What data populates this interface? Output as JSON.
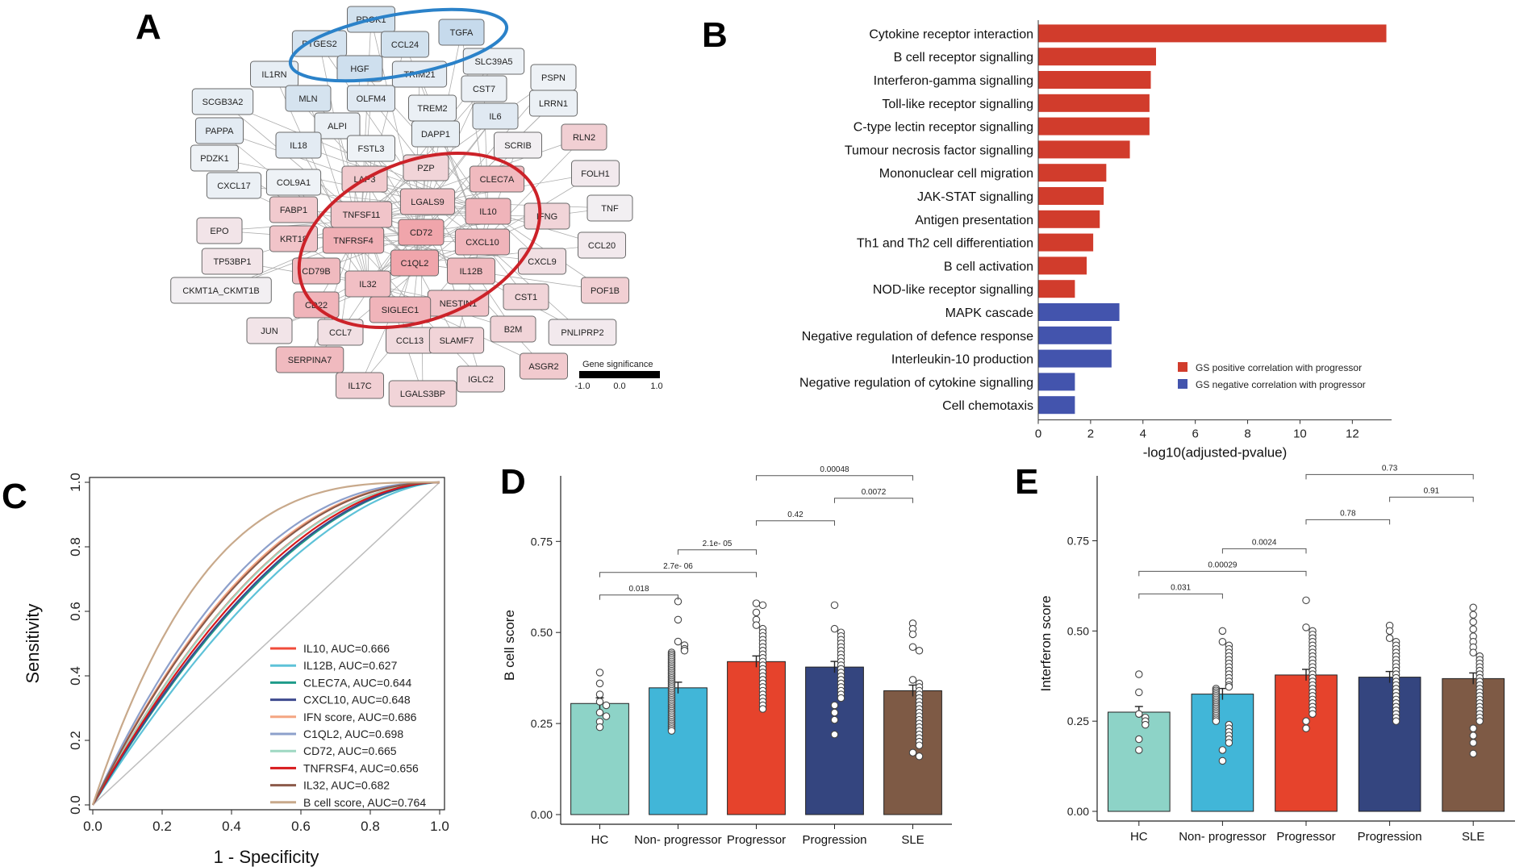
{
  "panel_labels": {
    "a": "A",
    "b": "B",
    "c": "C",
    "d": "D",
    "e": "E"
  },
  "network": {
    "legend_title": "Gene significance",
    "legend_ticks": [
      "-1.0",
      "0.0",
      "1.0"
    ],
    "colors": {
      "negative": "#a9c9e4",
      "neutral": "#f2f4f7",
      "positive": "#ef8a91",
      "outline_blue": "#2b82c9",
      "outline_red": "#cc2229"
    },
    "nodes": [
      {
        "label": "PROK1",
        "gs": -0.45
      },
      {
        "label": "TGFA",
        "gs": -0.6
      },
      {
        "label": "PTGES2",
        "gs": -0.4
      },
      {
        "label": "CCL24",
        "gs": -0.45
      },
      {
        "label": "HGF",
        "gs": -0.5
      },
      {
        "label": "IL1RN",
        "gs": -0.15
      },
      {
        "label": "TRIM21",
        "gs": -0.2
      },
      {
        "label": "SLC39A5",
        "gs": -0.1
      },
      {
        "label": "PSPN",
        "gs": -0.05
      },
      {
        "label": "SCGB3A2",
        "gs": -0.15
      },
      {
        "label": "MLN",
        "gs": -0.4
      },
      {
        "label": "OLFM4",
        "gs": -0.25
      },
      {
        "label": "CST7",
        "gs": -0.1
      },
      {
        "label": "LRRN1",
        "gs": -0.1
      },
      {
        "label": "TREM2",
        "gs": -0.1
      },
      {
        "label": "PAPPA",
        "gs": -0.2
      },
      {
        "label": "ALPI",
        "gs": -0.1
      },
      {
        "label": "DAPP1",
        "gs": -0.15
      },
      {
        "label": "IL6",
        "gs": -0.25
      },
      {
        "label": "RLN2",
        "gs": 0.35
      },
      {
        "label": "IL18",
        "gs": -0.2
      },
      {
        "label": "FSTL3",
        "gs": -0.05
      },
      {
        "label": "SCRIB",
        "gs": 0.05
      },
      {
        "label": "PDZK1",
        "gs": -0.05
      },
      {
        "label": "PZP",
        "gs": 0.3
      },
      {
        "label": "LAP3",
        "gs": 0.4
      },
      {
        "label": "CLEC7A",
        "gs": 0.55
      },
      {
        "label": "FOLH1",
        "gs": 0.1
      },
      {
        "label": "CXCL17",
        "gs": -0.1
      },
      {
        "label": "COL9A1",
        "gs": -0.05
      },
      {
        "label": "LGALS9",
        "gs": 0.5
      },
      {
        "label": "TNF",
        "gs": 0.05
      },
      {
        "label": "FABP1",
        "gs": 0.4
      },
      {
        "label": "TNFSF11",
        "gs": 0.45
      },
      {
        "label": "IL10",
        "gs": 0.6
      },
      {
        "label": "IFNG",
        "gs": 0.3
      },
      {
        "label": "EPO",
        "gs": 0.15
      },
      {
        "label": "KRT18",
        "gs": 0.45
      },
      {
        "label": "TNFRSF4",
        "gs": 0.65
      },
      {
        "label": "CD72",
        "gs": 0.75
      },
      {
        "label": "CXCL10",
        "gs": 0.6
      },
      {
        "label": "CCL20",
        "gs": 0.1
      },
      {
        "label": "TP53BP1",
        "gs": 0.15
      },
      {
        "label": "C1QL2",
        "gs": 0.75
      },
      {
        "label": "CXCL9",
        "gs": 0.2
      },
      {
        "label": "CD79B",
        "gs": 0.55
      },
      {
        "label": "IL12B",
        "gs": 0.55
      },
      {
        "label": "CKMT1A_CKMT1B",
        "gs": 0.05
      },
      {
        "label": "IL32",
        "gs": 0.5
      },
      {
        "label": "POF1B",
        "gs": 0.35
      },
      {
        "label": "NESTIN1",
        "gs": 0.45
      },
      {
        "label": "CST1",
        "gs": 0.3
      },
      {
        "label": "CD22",
        "gs": 0.6
      },
      {
        "label": "SIGLEC1",
        "gs": 0.6
      },
      {
        "label": "JUN",
        "gs": 0.15
      },
      {
        "label": "CCL7",
        "gs": 0.2
      },
      {
        "label": "CCL13",
        "gs": 0.25
      },
      {
        "label": "SLAMF7",
        "gs": 0.3
      },
      {
        "label": "B2M",
        "gs": 0.3
      },
      {
        "label": "PNLIPRP2",
        "gs": 0.1
      },
      {
        "label": "SERPINA7",
        "gs": 0.55
      },
      {
        "label": "ASGR2",
        "gs": 0.4
      },
      {
        "label": "IL17C",
        "gs": 0.35
      },
      {
        "label": "IGLC2",
        "gs": 0.25
      },
      {
        "label": "LGALS3BP",
        "gs": 0.3
      }
    ]
  },
  "chart_data": [
    {
      "panel": "B",
      "type": "bar",
      "orientation": "horizontal",
      "xlabel": "-log10(adjusted-pvalue)",
      "xlim": [
        0,
        13.5
      ],
      "x_ticks": [
        0,
        2,
        4,
        6,
        8,
        10,
        12
      ],
      "categories": [
        "Cytokine receptor interaction",
        "B cell receptor signalling",
        "Interferon-gamma signalling",
        "Toll-like receptor signalling",
        "C-type lectin receptor signalling",
        "Tumour necrosis factor signalling",
        "Mononuclear cell migration",
        "JAK-STAT signalling",
        "Antigen presentation",
        "Th1 and Th2 cell differentiation",
        "B cell activation",
        "NOD-like receptor signalling",
        "MAPK cascade",
        "Negative regulation of defence response",
        "Interleukin-10 production",
        "Negative regulation of cytokine signalling",
        "Cell chemotaxis"
      ],
      "values": [
        13.3,
        4.5,
        4.3,
        4.25,
        4.25,
        3.5,
        2.6,
        2.5,
        2.35,
        2.1,
        1.85,
        1.4,
        3.1,
        2.8,
        2.8,
        1.4,
        1.4
      ],
      "groups": [
        "pos",
        "pos",
        "pos",
        "pos",
        "pos",
        "pos",
        "pos",
        "pos",
        "pos",
        "pos",
        "pos",
        "pos",
        "neg",
        "neg",
        "neg",
        "neg",
        "neg"
      ],
      "legend": [
        {
          "key": "pos",
          "label": "GS positive correlation with progressor",
          "color": "#d13c2c"
        },
        {
          "key": "neg",
          "label": "GS negative correlation with progressor",
          "color": "#4354ad"
        }
      ],
      "legend_position": "bottom-right"
    },
    {
      "panel": "C",
      "type": "line",
      "xlabel": "1 -  Specificity",
      "ylabel": "Sensitivity",
      "xlim": [
        0,
        1
      ],
      "ylim": [
        0,
        1
      ],
      "ticks": [
        "0.0",
        "0.2",
        "0.4",
        "0.6",
        "0.8",
        "1.0"
      ],
      "series": [
        {
          "name": "IL10, AUC=0.666",
          "auc": 0.666,
          "color": "#f04b3a"
        },
        {
          "name": "IL12B, AUC=0.627",
          "auc": 0.627,
          "color": "#5ec2d8"
        },
        {
          "name": "CLEC7A, AUC=0.644",
          "auc": 0.644,
          "color": "#1f9b8a"
        },
        {
          "name": "CXCL10, AUC=0.648",
          "auc": 0.648,
          "color": "#3e4a8e"
        },
        {
          "name": "IFN score, AUC=0.686",
          "auc": 0.686,
          "color": "#f4a582"
        },
        {
          "name": "C1QL2, AUC=0.698",
          "auc": 0.698,
          "color": "#8da0cb"
        },
        {
          "name": "CD72, AUC=0.665",
          "auc": 0.665,
          "color": "#9ed8c2"
        },
        {
          "name": "TNFRSF4, AUC=0.656",
          "auc": 0.656,
          "color": "#d7191c"
        },
        {
          "name": "IL32, AUC=0.682",
          "auc": 0.682,
          "color": "#8c5a4a"
        },
        {
          "name": "B cell score, AUC=0.764",
          "auc": 0.764,
          "color": "#c8a98b"
        }
      ],
      "reference_line": true,
      "legend_position": "bottom-right"
    },
    {
      "panel": "D",
      "type": "bar",
      "ylabel": "B cell score",
      "ylim": [
        0,
        0.93
      ],
      "y_ticks": [
        "0.00",
        "0.25",
        "0.50",
        "0.75"
      ],
      "categories": [
        "HC",
        "Non- progressor",
        "Progressor",
        "Progression",
        "SLE"
      ],
      "values": [
        0.305,
        0.348,
        0.42,
        0.405,
        0.34
      ],
      "colors": [
        "#8dd3c7",
        "#41b6d8",
        "#e6432c",
        "#34457f",
        "#7e5a45"
      ],
      "points": [
        [
          0.39,
          0.36,
          0.33,
          0.31,
          0.3,
          0.28,
          0.27,
          0.255,
          0.24
        ],
        [
          0.585,
          0.535,
          0.475,
          0.465,
          0.455,
          0.45,
          0.445,
          0.44,
          0.435,
          0.43,
          0.425,
          0.42,
          0.415,
          0.41,
          0.405,
          0.4,
          0.395,
          0.39,
          0.385,
          0.38,
          0.375,
          0.37,
          0.365,
          0.36,
          0.355,
          0.35,
          0.345,
          0.34,
          0.335,
          0.33,
          0.325,
          0.32,
          0.315,
          0.31,
          0.305,
          0.3,
          0.295,
          0.29,
          0.285,
          0.28,
          0.275,
          0.27,
          0.265,
          0.26,
          0.255,
          0.25,
          0.245,
          0.24,
          0.235,
          0.23
        ],
        [
          0.58,
          0.575,
          0.555,
          0.535,
          0.52,
          0.51,
          0.5,
          0.49,
          0.48,
          0.47,
          0.46,
          0.45,
          0.44,
          0.43,
          0.42,
          0.41,
          0.4,
          0.39,
          0.38,
          0.37,
          0.36,
          0.35,
          0.34,
          0.33,
          0.32,
          0.31,
          0.3,
          0.29
        ],
        [
          0.575,
          0.51,
          0.5,
          0.49,
          0.48,
          0.47,
          0.46,
          0.45,
          0.44,
          0.43,
          0.42,
          0.41,
          0.4,
          0.39,
          0.38,
          0.37,
          0.36,
          0.35,
          0.34,
          0.33,
          0.32,
          0.3,
          0.28,
          0.26,
          0.22
        ],
        [
          0.525,
          0.51,
          0.495,
          0.46,
          0.45,
          0.37,
          0.36,
          0.35,
          0.34,
          0.33,
          0.32,
          0.31,
          0.3,
          0.29,
          0.28,
          0.27,
          0.26,
          0.25,
          0.24,
          0.23,
          0.22,
          0.21,
          0.2,
          0.19,
          0.17,
          0.16
        ]
      ],
      "brackets": [
        {
          "from": 0,
          "to": 1,
          "label": "0.018",
          "level": 0
        },
        {
          "from": 0,
          "to": 2,
          "label": "2.7e- 06",
          "level": 1
        },
        {
          "from": 1,
          "to": 2,
          "label": "2.1e- 05",
          "level": 2
        },
        {
          "from": 2,
          "to": 3,
          "label": "0.42",
          "level": 3
        },
        {
          "from": 3,
          "to": 4,
          "label": "0.0072",
          "level": 4
        },
        {
          "from": 2,
          "to": 4,
          "label": "0.00048",
          "level": 5
        }
      ]
    },
    {
      "panel": "E",
      "type": "bar",
      "ylabel": "Interferon score",
      "ylim": [
        0,
        0.93
      ],
      "y_ticks": [
        "0.00",
        "0.25",
        "0.50",
        "0.75"
      ],
      "categories": [
        "HC",
        "Non- progressor",
        "Progressor",
        "Progression",
        "SLE"
      ],
      "values": [
        0.275,
        0.325,
        0.378,
        0.372,
        0.368
      ],
      "colors": [
        "#8dd3c7",
        "#41b6d8",
        "#e6432c",
        "#34457f",
        "#7e5a45"
      ],
      "points": [
        [
          0.38,
          0.33,
          0.27,
          0.26,
          0.25,
          0.24,
          0.2,
          0.17
        ],
        [
          0.5,
          0.47,
          0.46,
          0.45,
          0.44,
          0.43,
          0.42,
          0.41,
          0.4,
          0.39,
          0.38,
          0.37,
          0.36,
          0.35,
          0.345,
          0.34,
          0.335,
          0.33,
          0.325,
          0.32,
          0.315,
          0.31,
          0.305,
          0.3,
          0.295,
          0.29,
          0.285,
          0.28,
          0.275,
          0.27,
          0.265,
          0.26,
          0.255,
          0.25,
          0.24,
          0.23,
          0.22,
          0.21,
          0.2,
          0.19,
          0.17,
          0.14
        ],
        [
          0.585,
          0.51,
          0.5,
          0.49,
          0.48,
          0.47,
          0.46,
          0.45,
          0.44,
          0.43,
          0.42,
          0.41,
          0.4,
          0.39,
          0.38,
          0.37,
          0.36,
          0.35,
          0.34,
          0.33,
          0.32,
          0.31,
          0.3,
          0.29,
          0.28,
          0.27,
          0.25,
          0.23
        ],
        [
          0.515,
          0.5,
          0.48,
          0.47,
          0.46,
          0.45,
          0.44,
          0.43,
          0.42,
          0.41,
          0.4,
          0.39,
          0.38,
          0.37,
          0.36,
          0.35,
          0.34,
          0.33,
          0.32,
          0.31,
          0.3,
          0.29,
          0.28,
          0.27,
          0.26,
          0.25
        ],
        [
          0.565,
          0.545,
          0.525,
          0.505,
          0.485,
          0.47,
          0.455,
          0.44,
          0.43,
          0.42,
          0.41,
          0.4,
          0.39,
          0.38,
          0.37,
          0.36,
          0.35,
          0.34,
          0.33,
          0.32,
          0.31,
          0.3,
          0.29,
          0.28,
          0.27,
          0.26,
          0.25,
          0.23,
          0.21,
          0.19,
          0.16
        ]
      ],
      "brackets": [
        {
          "from": 0,
          "to": 1,
          "label": "0.031",
          "level": 0
        },
        {
          "from": 0,
          "to": 2,
          "label": "0.00029",
          "level": 1
        },
        {
          "from": 1,
          "to": 2,
          "label": "0.0024",
          "level": 2
        },
        {
          "from": 2,
          "to": 3,
          "label": "0.78",
          "level": 3
        },
        {
          "from": 3,
          "to": 4,
          "label": "0.91",
          "level": 4
        },
        {
          "from": 2,
          "to": 4,
          "label": "0.73",
          "level": 5
        }
      ]
    }
  ]
}
